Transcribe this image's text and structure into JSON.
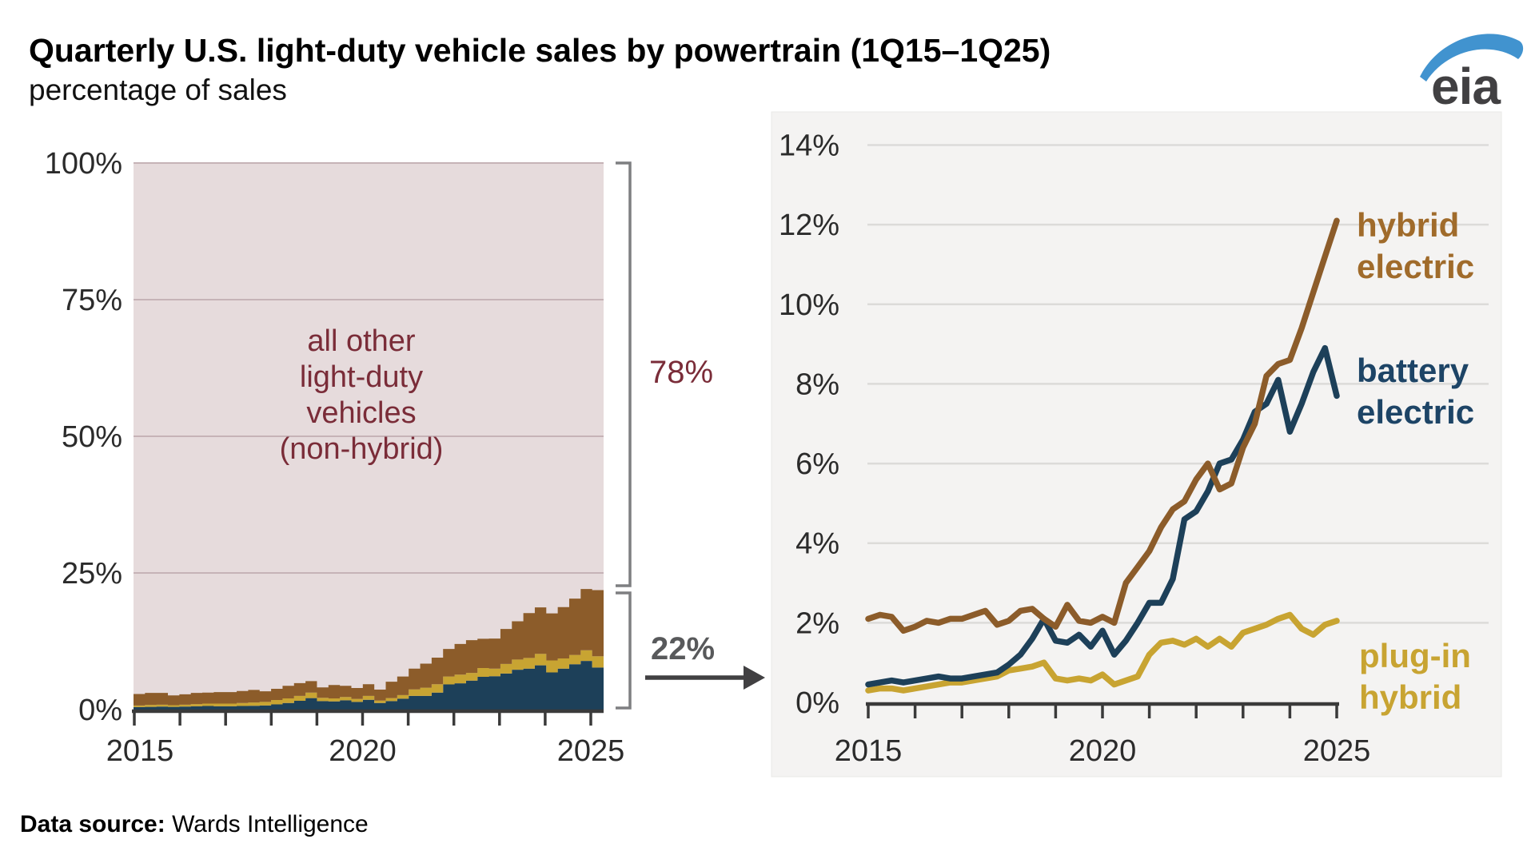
{
  "title": "Quarterly U.S. light-duty vehicle sales by powertrain (1Q15–1Q25)",
  "subtitle": "percentage of sales",
  "logo": {
    "text": "eia",
    "swoosh_color": "#4193cf",
    "text_color": "#414042"
  },
  "footer": {
    "label": "Data source:",
    "value": " Wards Intelligence"
  },
  "annotations": {
    "other_label": "all other\nlight-duty\nvehicles\n(non-hybrid)",
    "share_other": "78%",
    "share_electrified": "22%"
  },
  "right_labels": {
    "hybrid": "hybrid\nelectric",
    "battery": "battery\nelectric",
    "plugin": "plug-in\nhybrid"
  },
  "colors": {
    "hybrid_line": "#8c5c2a",
    "hybrid_label": "#a06b2b",
    "battery_line": "#1d4059",
    "battery_label": "#1d4466",
    "plugin_line": "#c8a432",
    "other_fill": "#e6dbdc",
    "other_text": "#7a2c38",
    "axis": "#3a3a3a",
    "grid_right": "#dcdbd9",
    "grid_left": "#c6b3b7",
    "panel_bg": "#f4f3f2",
    "bracket": "#7e7f81",
    "share22_text": "#58595b",
    "arrow": "#414042"
  },
  "chart_data": [
    {
      "type": "area",
      "stacked": true,
      "title": "share of sales, stacked to 100%",
      "categories": [
        "1Q15",
        "2Q15",
        "3Q15",
        "4Q15",
        "1Q16",
        "2Q16",
        "3Q16",
        "4Q16",
        "1Q17",
        "2Q17",
        "3Q17",
        "4Q17",
        "1Q18",
        "2Q18",
        "3Q18",
        "4Q18",
        "1Q19",
        "2Q19",
        "3Q19",
        "4Q19",
        "1Q20",
        "2Q20",
        "3Q20",
        "4Q20",
        "1Q21",
        "2Q21",
        "3Q21",
        "4Q21",
        "1Q22",
        "2Q22",
        "3Q22",
        "4Q22",
        "1Q23",
        "2Q23",
        "3Q23",
        "4Q23",
        "1Q24",
        "2Q24",
        "3Q24",
        "4Q24",
        "1Q25"
      ],
      "series": [
        {
          "name": "battery electric",
          "color": "#1d4059",
          "values": [
            0.45,
            0.5,
            0.55,
            0.5,
            0.55,
            0.6,
            0.65,
            0.6,
            0.6,
            0.65,
            0.7,
            0.75,
            0.95,
            1.2,
            1.6,
            2.1,
            1.55,
            1.5,
            1.7,
            1.4,
            1.8,
            1.2,
            1.55,
            2.0,
            2.5,
            2.5,
            3.1,
            4.6,
            4.8,
            5.3,
            6.0,
            6.1,
            6.6,
            7.3,
            7.5,
            8.1,
            6.8,
            7.5,
            8.3,
            8.9,
            7.7
          ]
        },
        {
          "name": "plug-in hybrid",
          "color": "#c8a432",
          "values": [
            0.3,
            0.35,
            0.35,
            0.3,
            0.35,
            0.4,
            0.45,
            0.5,
            0.5,
            0.55,
            0.6,
            0.65,
            0.8,
            0.85,
            0.9,
            1.0,
            0.6,
            0.55,
            0.6,
            0.55,
            0.7,
            0.45,
            0.55,
            0.65,
            1.2,
            1.5,
            1.55,
            1.45,
            1.6,
            1.4,
            1.6,
            1.4,
            1.75,
            1.85,
            1.95,
            2.1,
            2.2,
            1.85,
            1.7,
            1.95,
            2.05
          ]
        },
        {
          "name": "hybrid electric",
          "color": "#8c5c2a",
          "values": [
            2.1,
            2.2,
            2.15,
            1.8,
            1.9,
            2.05,
            2.0,
            2.1,
            2.1,
            2.2,
            2.3,
            1.95,
            2.05,
            2.3,
            2.35,
            2.1,
            1.9,
            2.45,
            2.05,
            2.0,
            2.15,
            2.0,
            3.0,
            3.4,
            3.8,
            4.4,
            4.85,
            5.05,
            5.6,
            6.0,
            5.35,
            5.5,
            6.4,
            7.0,
            8.2,
            8.5,
            8.6,
            9.4,
            10.3,
            11.2,
            12.1
          ]
        },
        {
          "name": "all other light-duty vehicles (non-hybrid)",
          "color": "#e6dbdc",
          "remainder_to_100": true
        }
      ],
      "ylim": [
        0,
        100
      ],
      "ytick_labels": [
        "0%",
        "25%",
        "50%",
        "75%",
        "100%"
      ],
      "ytick_values": [
        0,
        25,
        50,
        75,
        100
      ],
      "xtick_years": [
        2015,
        2016,
        2017,
        2018,
        2019,
        2020,
        2021,
        2022,
        2023,
        2024,
        2025
      ],
      "xtick_labeled": {
        "2015": "2015",
        "2020": "2020",
        "2025": "2025"
      },
      "grid": true,
      "annotation_right_top": "78%",
      "annotation_right_bottom": "22%"
    },
    {
      "type": "line",
      "title": "share of sales by electrified powertrain",
      "categories": [
        "1Q15",
        "2Q15",
        "3Q15",
        "4Q15",
        "1Q16",
        "2Q16",
        "3Q16",
        "4Q16",
        "1Q17",
        "2Q17",
        "3Q17",
        "4Q17",
        "1Q18",
        "2Q18",
        "3Q18",
        "4Q18",
        "1Q19",
        "2Q19",
        "3Q19",
        "4Q19",
        "1Q20",
        "2Q20",
        "3Q20",
        "4Q20",
        "1Q21",
        "2Q21",
        "3Q21",
        "4Q21",
        "1Q22",
        "2Q22",
        "3Q22",
        "4Q22",
        "1Q23",
        "2Q23",
        "3Q23",
        "4Q23",
        "1Q24",
        "2Q24",
        "3Q24",
        "4Q24",
        "1Q25"
      ],
      "series": [
        {
          "name": "plug-in hybrid",
          "color": "#c8a432",
          "values": [
            0.3,
            0.35,
            0.35,
            0.3,
            0.35,
            0.4,
            0.45,
            0.5,
            0.5,
            0.55,
            0.6,
            0.65,
            0.8,
            0.85,
            0.9,
            1.0,
            0.6,
            0.55,
            0.6,
            0.55,
            0.7,
            0.45,
            0.55,
            0.65,
            1.2,
            1.5,
            1.55,
            1.45,
            1.6,
            1.4,
            1.6,
            1.4,
            1.75,
            1.85,
            1.95,
            2.1,
            2.2,
            1.85,
            1.7,
            1.95,
            2.05
          ]
        },
        {
          "name": "battery electric",
          "color": "#1d4059",
          "values": [
            0.45,
            0.5,
            0.55,
            0.5,
            0.55,
            0.6,
            0.65,
            0.6,
            0.6,
            0.65,
            0.7,
            0.75,
            0.95,
            1.2,
            1.6,
            2.1,
            1.55,
            1.5,
            1.7,
            1.4,
            1.8,
            1.2,
            1.55,
            2.0,
            2.5,
            2.5,
            3.1,
            4.6,
            4.8,
            5.3,
            6.0,
            6.1,
            6.6,
            7.3,
            7.5,
            8.1,
            6.8,
            7.5,
            8.3,
            8.9,
            7.7
          ]
        },
        {
          "name": "hybrid electric",
          "color": "#8c5c2a",
          "values": [
            2.1,
            2.2,
            2.15,
            1.8,
            1.9,
            2.05,
            2.0,
            2.1,
            2.1,
            2.2,
            2.3,
            1.95,
            2.05,
            2.3,
            2.35,
            2.1,
            1.9,
            2.45,
            2.05,
            2.0,
            2.15,
            2.0,
            3.0,
            3.4,
            3.8,
            4.4,
            4.85,
            5.05,
            5.6,
            6.0,
            5.35,
            5.5,
            6.4,
            7.0,
            8.2,
            8.5,
            8.6,
            9.4,
            10.3,
            11.2,
            12.1
          ]
        }
      ],
      "ylim": [
        0,
        14
      ],
      "ytick_labels": [
        "0%",
        "2%",
        "4%",
        "6%",
        "8%",
        "10%",
        "12%",
        "14%"
      ],
      "ytick_values": [
        0,
        2,
        4,
        6,
        8,
        10,
        12,
        14
      ],
      "xtick_years": [
        2015,
        2016,
        2017,
        2018,
        2019,
        2020,
        2021,
        2022,
        2023,
        2024,
        2025
      ],
      "xtick_labeled": {
        "2015": "2015",
        "2020": "2020",
        "2025": "2025"
      },
      "grid": true,
      "legend_position": "right-inside"
    }
  ]
}
